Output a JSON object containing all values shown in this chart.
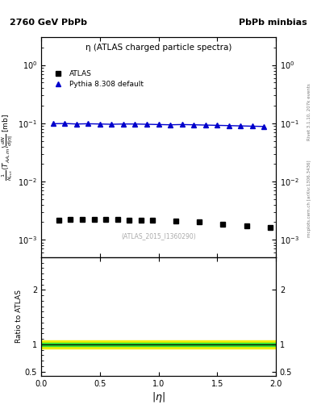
{
  "title_left": "2760 GeV PbPb",
  "title_right": "PbPb minbias",
  "plot_title": "η (ATLAS charged particle spectra)",
  "right_label_top": "Rivet 3.1.10, 207k events",
  "right_label_bottom": "mcplots.cern.ch [arXiv:1306.3436]",
  "watermark": "(ATLAS_2015_I1360290)",
  "ylabel_main": "$\\frac{1}{N_{evt}}\\langle T_{AA,m}\\rangle\\frac{dN}{d|\\eta|}$ [mb]",
  "ylabel_ratio": "Ratio to ATLAS",
  "xlabel": "$|\\eta|$",
  "xlim": [
    0,
    2
  ],
  "ylim_main": [
    0.0005,
    3
  ],
  "ylim_ratio": [
    0.42,
    2.6
  ],
  "atlas_eta": [
    0.15,
    0.25,
    0.35,
    0.45,
    0.55,
    0.65,
    0.75,
    0.85,
    0.95,
    1.15,
    1.35,
    1.55,
    1.75,
    1.95
  ],
  "atlas_values": [
    0.00215,
    0.00225,
    0.00222,
    0.00221,
    0.00221,
    0.0022,
    0.00218,
    0.00217,
    0.00215,
    0.00208,
    0.002,
    0.00185,
    0.00175,
    0.00165
  ],
  "pythia_eta": [
    0.1,
    0.2,
    0.3,
    0.4,
    0.5,
    0.6,
    0.7,
    0.8,
    0.9,
    1.0,
    1.1,
    1.2,
    1.3,
    1.4,
    1.5,
    1.6,
    1.7,
    1.8,
    1.9
  ],
  "pythia_values": [
    0.098,
    0.099,
    0.097,
    0.098,
    0.097,
    0.096,
    0.097,
    0.097,
    0.096,
    0.095,
    0.094,
    0.095,
    0.094,
    0.093,
    0.092,
    0.091,
    0.09,
    0.089,
    0.088
  ],
  "ratio_green_lo": 0.975,
  "ratio_green_hi": 1.025,
  "ratio_yellow_lo": 0.93,
  "ratio_yellow_hi": 1.07,
  "atlas_color": "#000000",
  "pythia_color": "#0000cc",
  "green_color": "#33dd33",
  "yellow_color": "#eeee00",
  "bg_color": "#ffffff"
}
